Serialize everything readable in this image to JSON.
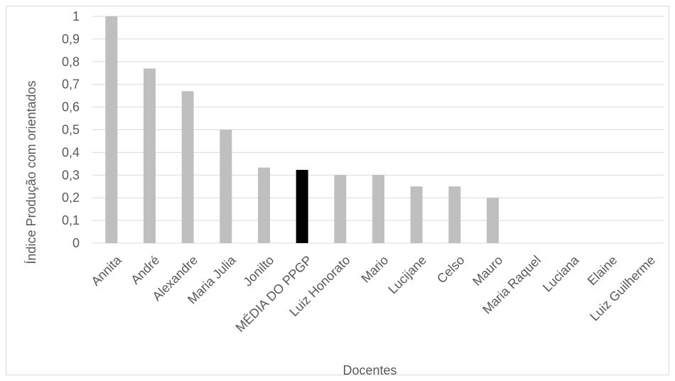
{
  "chart_data": {
    "type": "bar",
    "title": "",
    "xlabel": "Docentes",
    "ylabel": "Índice Produção com orientados",
    "ylim": [
      0,
      1
    ],
    "y_ticks": [
      "0",
      "0,1",
      "0,2",
      "0,3",
      "0,4",
      "0,5",
      "0,6",
      "0,7",
      "0,8",
      "0,9",
      "1"
    ],
    "grid": true,
    "categories": [
      "Annita",
      "André",
      "Alexandre",
      "Maria Julia",
      "Jonilto",
      "MÉDIA DO PPGP",
      "Luiz Honorato",
      "Mario",
      "Lucijane",
      "Celso",
      "Mauro",
      "Maria Raquel",
      "Luciana",
      "Elaine",
      "Luiz Guilherme"
    ],
    "values": [
      1,
      0.77,
      0.67,
      0.5,
      0.333,
      0.323,
      0.3,
      0.3,
      0.25,
      0.25,
      0.2,
      0,
      0,
      0,
      0
    ],
    "colors": {
      "default_bar": "#bfbfbf",
      "highlight_bar": "#000000",
      "grid": "#d9d9d9",
      "text": "#595959"
    },
    "highlight_category": "MÉDIA DO PPGP"
  }
}
